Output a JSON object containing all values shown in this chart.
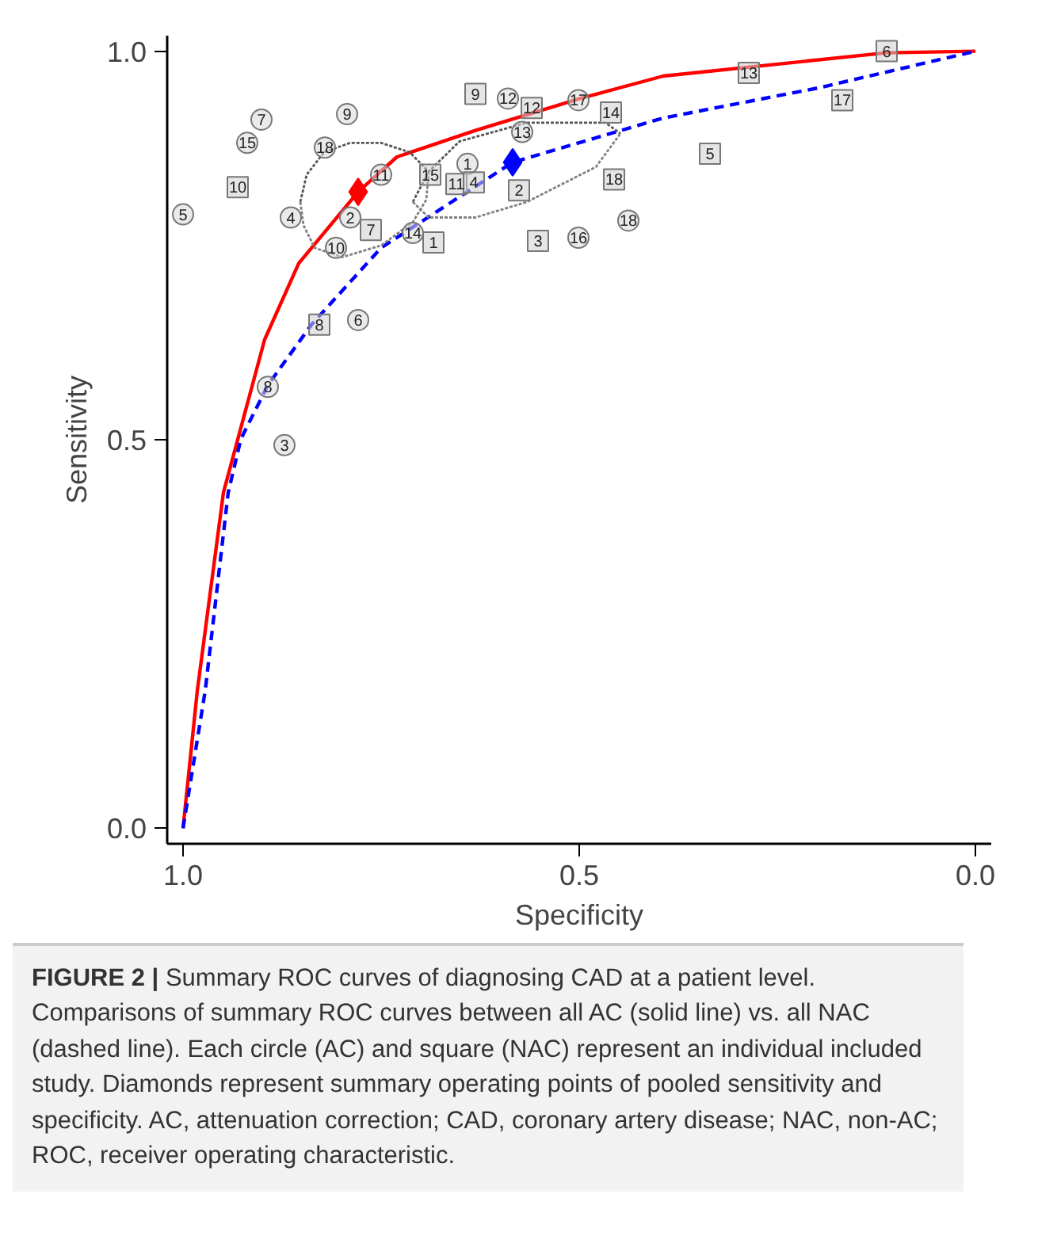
{
  "chart_data": {
    "type": "line",
    "xlabel": "Specificity",
    "ylabel": "Sensitivity",
    "xlim": [
      1.02,
      -0.02
    ],
    "ylim": [
      -0.02,
      1.02
    ],
    "xticks": [
      {
        "value": 1.0,
        "label": "1.0"
      },
      0.5,
      {
        "value": 0.0,
        "label": "0.0"
      }
    ],
    "yticks": [
      {
        "value": 0.0,
        "label": "0.0"
      },
      0.5,
      {
        "value": 1.0,
        "label": "1.0"
      }
    ],
    "grid": false,
    "series": [
      {
        "type": "line",
        "color": "#ff0000",
        "line_style": "solid",
        "marker": "none",
        "x": [
          1.0,
          0.982,
          0.949,
          0.897,
          0.854,
          0.779,
          0.73,
          0.631,
          0.499,
          0.394,
          0.112,
          0.0
        ],
        "values": [
          0.0,
          0.177,
          0.432,
          0.629,
          0.727,
          0.819,
          0.864,
          0.898,
          0.939,
          0.968,
          0.998,
          1.0
        ]
      },
      {
        "type": "line",
        "color": "#0000ff",
        "line_style": "dashed",
        "marker": "none",
        "x": [
          1.0,
          0.972,
          0.943,
          0.927,
          0.893,
          0.838,
          0.75,
          0.584,
          0.394,
          0.197,
          0.0
        ],
        "values": [
          0.0,
          0.177,
          0.432,
          0.501,
          0.57,
          0.648,
          0.747,
          0.857,
          0.914,
          0.953,
          1.0
        ]
      },
      {
        "type": "line",
        "color": "#555555",
        "line_style": "dotted",
        "marker": "none",
        "x": [
          0.852,
          0.844,
          0.822,
          0.789,
          0.75,
          0.714,
          0.69
        ],
        "values": [
          0.806,
          0.841,
          0.87,
          0.882,
          0.882,
          0.87,
          0.845
        ]
      },
      {
        "type": "line",
        "color": "#808080",
        "line_style": "dotted",
        "marker": "none",
        "x": [
          0.852,
          0.848,
          0.834,
          0.799,
          0.75,
          0.71,
          0.693,
          0.69
        ],
        "values": [
          0.806,
          0.776,
          0.747,
          0.735,
          0.75,
          0.78,
          0.809,
          0.845
        ]
      },
      {
        "type": "line",
        "color": "#555555",
        "line_style": "dotted",
        "marker": "none",
        "x": [
          0.71,
          0.69,
          0.651,
          0.566,
          0.467,
          0.448
        ],
        "values": [
          0.806,
          0.845,
          0.884,
          0.908,
          0.908,
          0.894
        ]
      },
      {
        "type": "line",
        "color": "#808080",
        "line_style": "dotted",
        "marker": "none",
        "x": [
          0.71,
          0.69,
          0.631,
          0.566,
          0.479,
          0.448
        ],
        "values": [
          0.806,
          0.786,
          0.786,
          0.806,
          0.851,
          0.894
        ]
      },
      {
        "type": "scatter",
        "marker": "circle",
        "color": "#d9d9d9",
        "x": [
          0.901,
          0.919,
          0.793,
          0.821,
          1.0,
          0.864,
          0.75,
          0.789,
          0.807,
          0.71,
          0.779,
          0.893,
          0.872,
          0.641,
          0.572,
          0.59,
          0.501,
          0.438,
          0.501
        ],
        "values": [
          0.912,
          0.882,
          0.919,
          0.876,
          0.79,
          0.786,
          0.841,
          0.786,
          0.747,
          0.766,
          0.654,
          0.568,
          0.493,
          0.855,
          0.896,
          0.939,
          0.937,
          0.782,
          0.76
        ]
      },
      {
        "type": "scatter",
        "marker": "square",
        "color": "#d0d0d0",
        "x": [
          0.931,
          0.763,
          0.684,
          0.828,
          0.688,
          0.655,
          0.633,
          0.576,
          0.631,
          0.56,
          0.46,
          0.456,
          0.552,
          0.335,
          0.286,
          0.168,
          0.112
        ],
        "values": [
          0.825,
          0.77,
          0.754,
          0.648,
          0.841,
          0.829,
          0.831,
          0.821,
          0.945,
          0.927,
          0.921,
          0.835,
          0.756,
          0.868,
          0.972,
          0.937,
          1.0
        ]
      },
      {
        "type": "scatter",
        "marker": "diamond",
        "color": "#ff0000",
        "x": [
          0.779
        ],
        "values": [
          0.819
        ]
      },
      {
        "type": "scatter",
        "marker": "diamond",
        "color": "#0000ff",
        "x": [
          0.584
        ],
        "values": [
          0.857
        ]
      }
    ],
    "annotations": [
      "FIGURE 2 |",
      "Summary ROC curves of diagnosing CAD at a patient level. Comparisons of summary ROC curves between all AC (solid line) vs. all NAC (dashed line). Each circle (AC) and square (NAC) represent an individual included study. Diamonds represent summary operating points of pooled sensitivity and specificity. AC, attenuation correction; CAD, coronary artery disease; NAC, non-AC; ROC, receiver operating characteristic.",
      {
        "text": "7",
        "x": 0.901,
        "y": 0.912
      },
      {
        "text": "15",
        "x": 0.919,
        "y": 0.882
      },
      {
        "text": "9",
        "x": 0.793,
        "y": 0.919
      },
      {
        "text": "18",
        "x": 0.821,
        "y": 0.876
      },
      {
        "text": "5",
        "x": 1.0,
        "y": 0.79
      },
      {
        "text": "4",
        "x": 0.864,
        "y": 0.786
      },
      {
        "text": "11",
        "x": 0.75,
        "y": 0.841
      },
      {
        "text": "2",
        "x": 0.789,
        "y": 0.786
      },
      {
        "text": "10",
        "x": 0.807,
        "y": 0.747
      },
      {
        "text": "14",
        "x": 0.71,
        "y": 0.766
      },
      {
        "text": "6",
        "x": 0.779,
        "y": 0.654
      },
      {
        "text": "8",
        "x": 0.893,
        "y": 0.568
      },
      {
        "text": "3",
        "x": 0.872,
        "y": 0.493
      },
      {
        "text": "1",
        "x": 0.641,
        "y": 0.855
      },
      {
        "text": "13",
        "x": 0.572,
        "y": 0.896
      },
      {
        "text": "12",
        "x": 0.59,
        "y": 0.939
      },
      {
        "text": "17",
        "x": 0.501,
        "y": 0.937
      },
      {
        "text": "18",
        "x": 0.438,
        "y": 0.782
      },
      {
        "text": "16",
        "x": 0.501,
        "y": 0.76
      },
      {
        "text": "10",
        "x": 0.931,
        "y": 0.825
      },
      {
        "text": "7",
        "x": 0.763,
        "y": 0.77
      },
      {
        "text": "1",
        "x": 0.684,
        "y": 0.754
      },
      {
        "text": "8",
        "x": 0.828,
        "y": 0.648
      },
      {
        "text": "15",
        "x": 0.688,
        "y": 0.841
      },
      {
        "text": "11",
        "x": 0.655,
        "y": 0.829
      },
      {
        "text": "4",
        "x": 0.633,
        "y": 0.831
      },
      {
        "text": "2",
        "x": 0.576,
        "y": 0.821
      },
      {
        "text": "9",
        "x": 0.631,
        "y": 0.945
      },
      {
        "text": "12",
        "x": 0.56,
        "y": 0.927
      },
      {
        "text": "14",
        "x": 0.46,
        "y": 0.921
      },
      {
        "text": "18",
        "x": 0.456,
        "y": 0.835
      },
      {
        "text": "3",
        "x": 0.552,
        "y": 0.756
      },
      {
        "text": "5",
        "x": 0.335,
        "y": 0.868
      },
      {
        "text": "13",
        "x": 0.286,
        "y": 0.972
      },
      {
        "text": "17",
        "x": 0.168,
        "y": 0.937
      },
      {
        "text": "6",
        "x": 0.112,
        "y": 1.0
      }
    ]
  }
}
